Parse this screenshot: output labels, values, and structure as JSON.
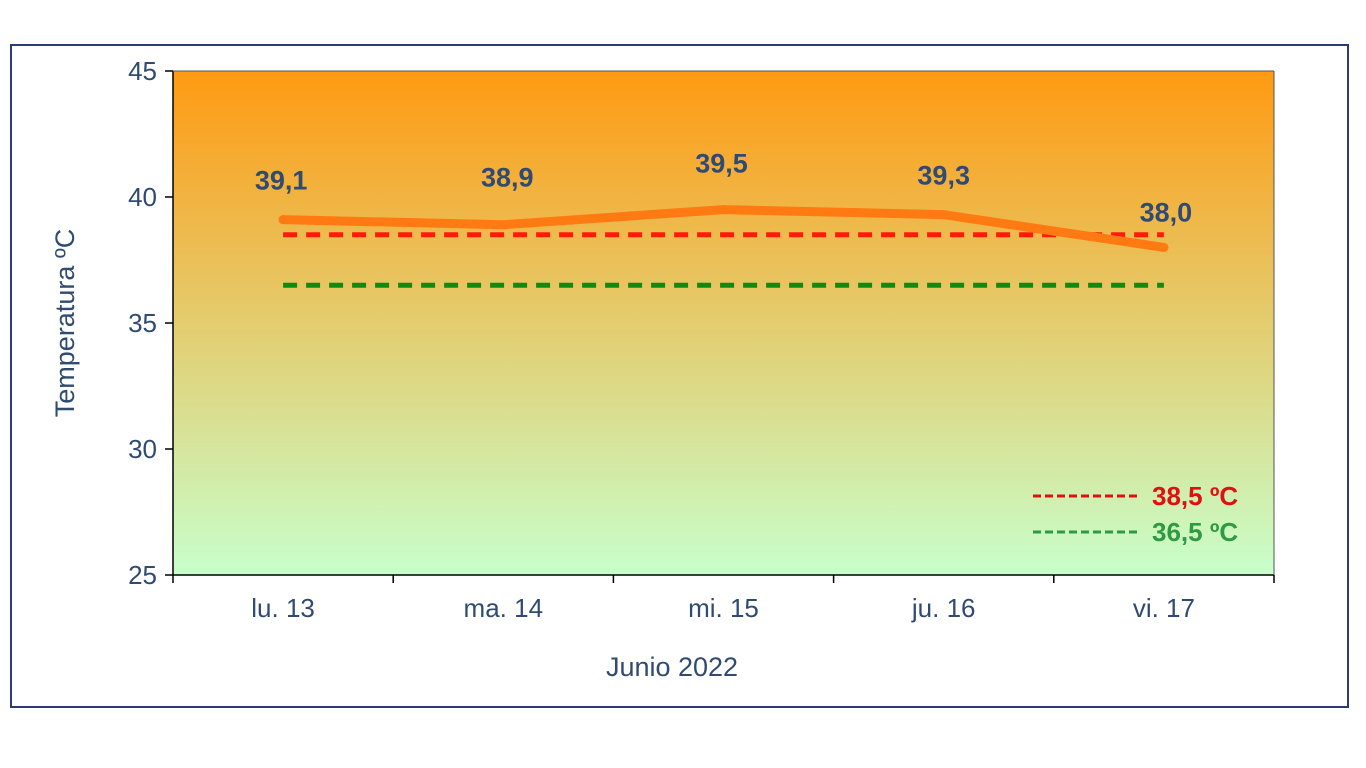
{
  "chart_data": {
    "type": "line",
    "categories": [
      "lu. 13",
      "ma. 14",
      "mi. 15",
      "ju. 16",
      "vi. 17"
    ],
    "series": [
      {
        "values": [
          39.1,
          38.9,
          39.5,
          39.3,
          38.0
        ],
        "color": "#ff7a12"
      }
    ],
    "data_labels": [
      "39,1",
      "38,9",
      "39,5",
      "39,3",
      "38,0"
    ],
    "reference_lines": [
      {
        "name": "38,5 ºC",
        "value": 38.5,
        "color": "#ff1a0a",
        "legend_color": "#e01010"
      },
      {
        "name": "36,5 ºC",
        "value": 36.5,
        "color": "#118a11",
        "legend_color": "#2e9a44"
      }
    ],
    "y_ticks": [
      "25",
      "30",
      "35",
      "40",
      "45"
    ],
    "ylim": [
      25,
      45
    ],
    "xlabel": "Junio 2022",
    "ylabel": "Temperatura ºC",
    "legend_position": "bottom-right",
    "background_gradient": [
      "#ff9a12",
      "#c8ffcc"
    ],
    "grid": false
  }
}
